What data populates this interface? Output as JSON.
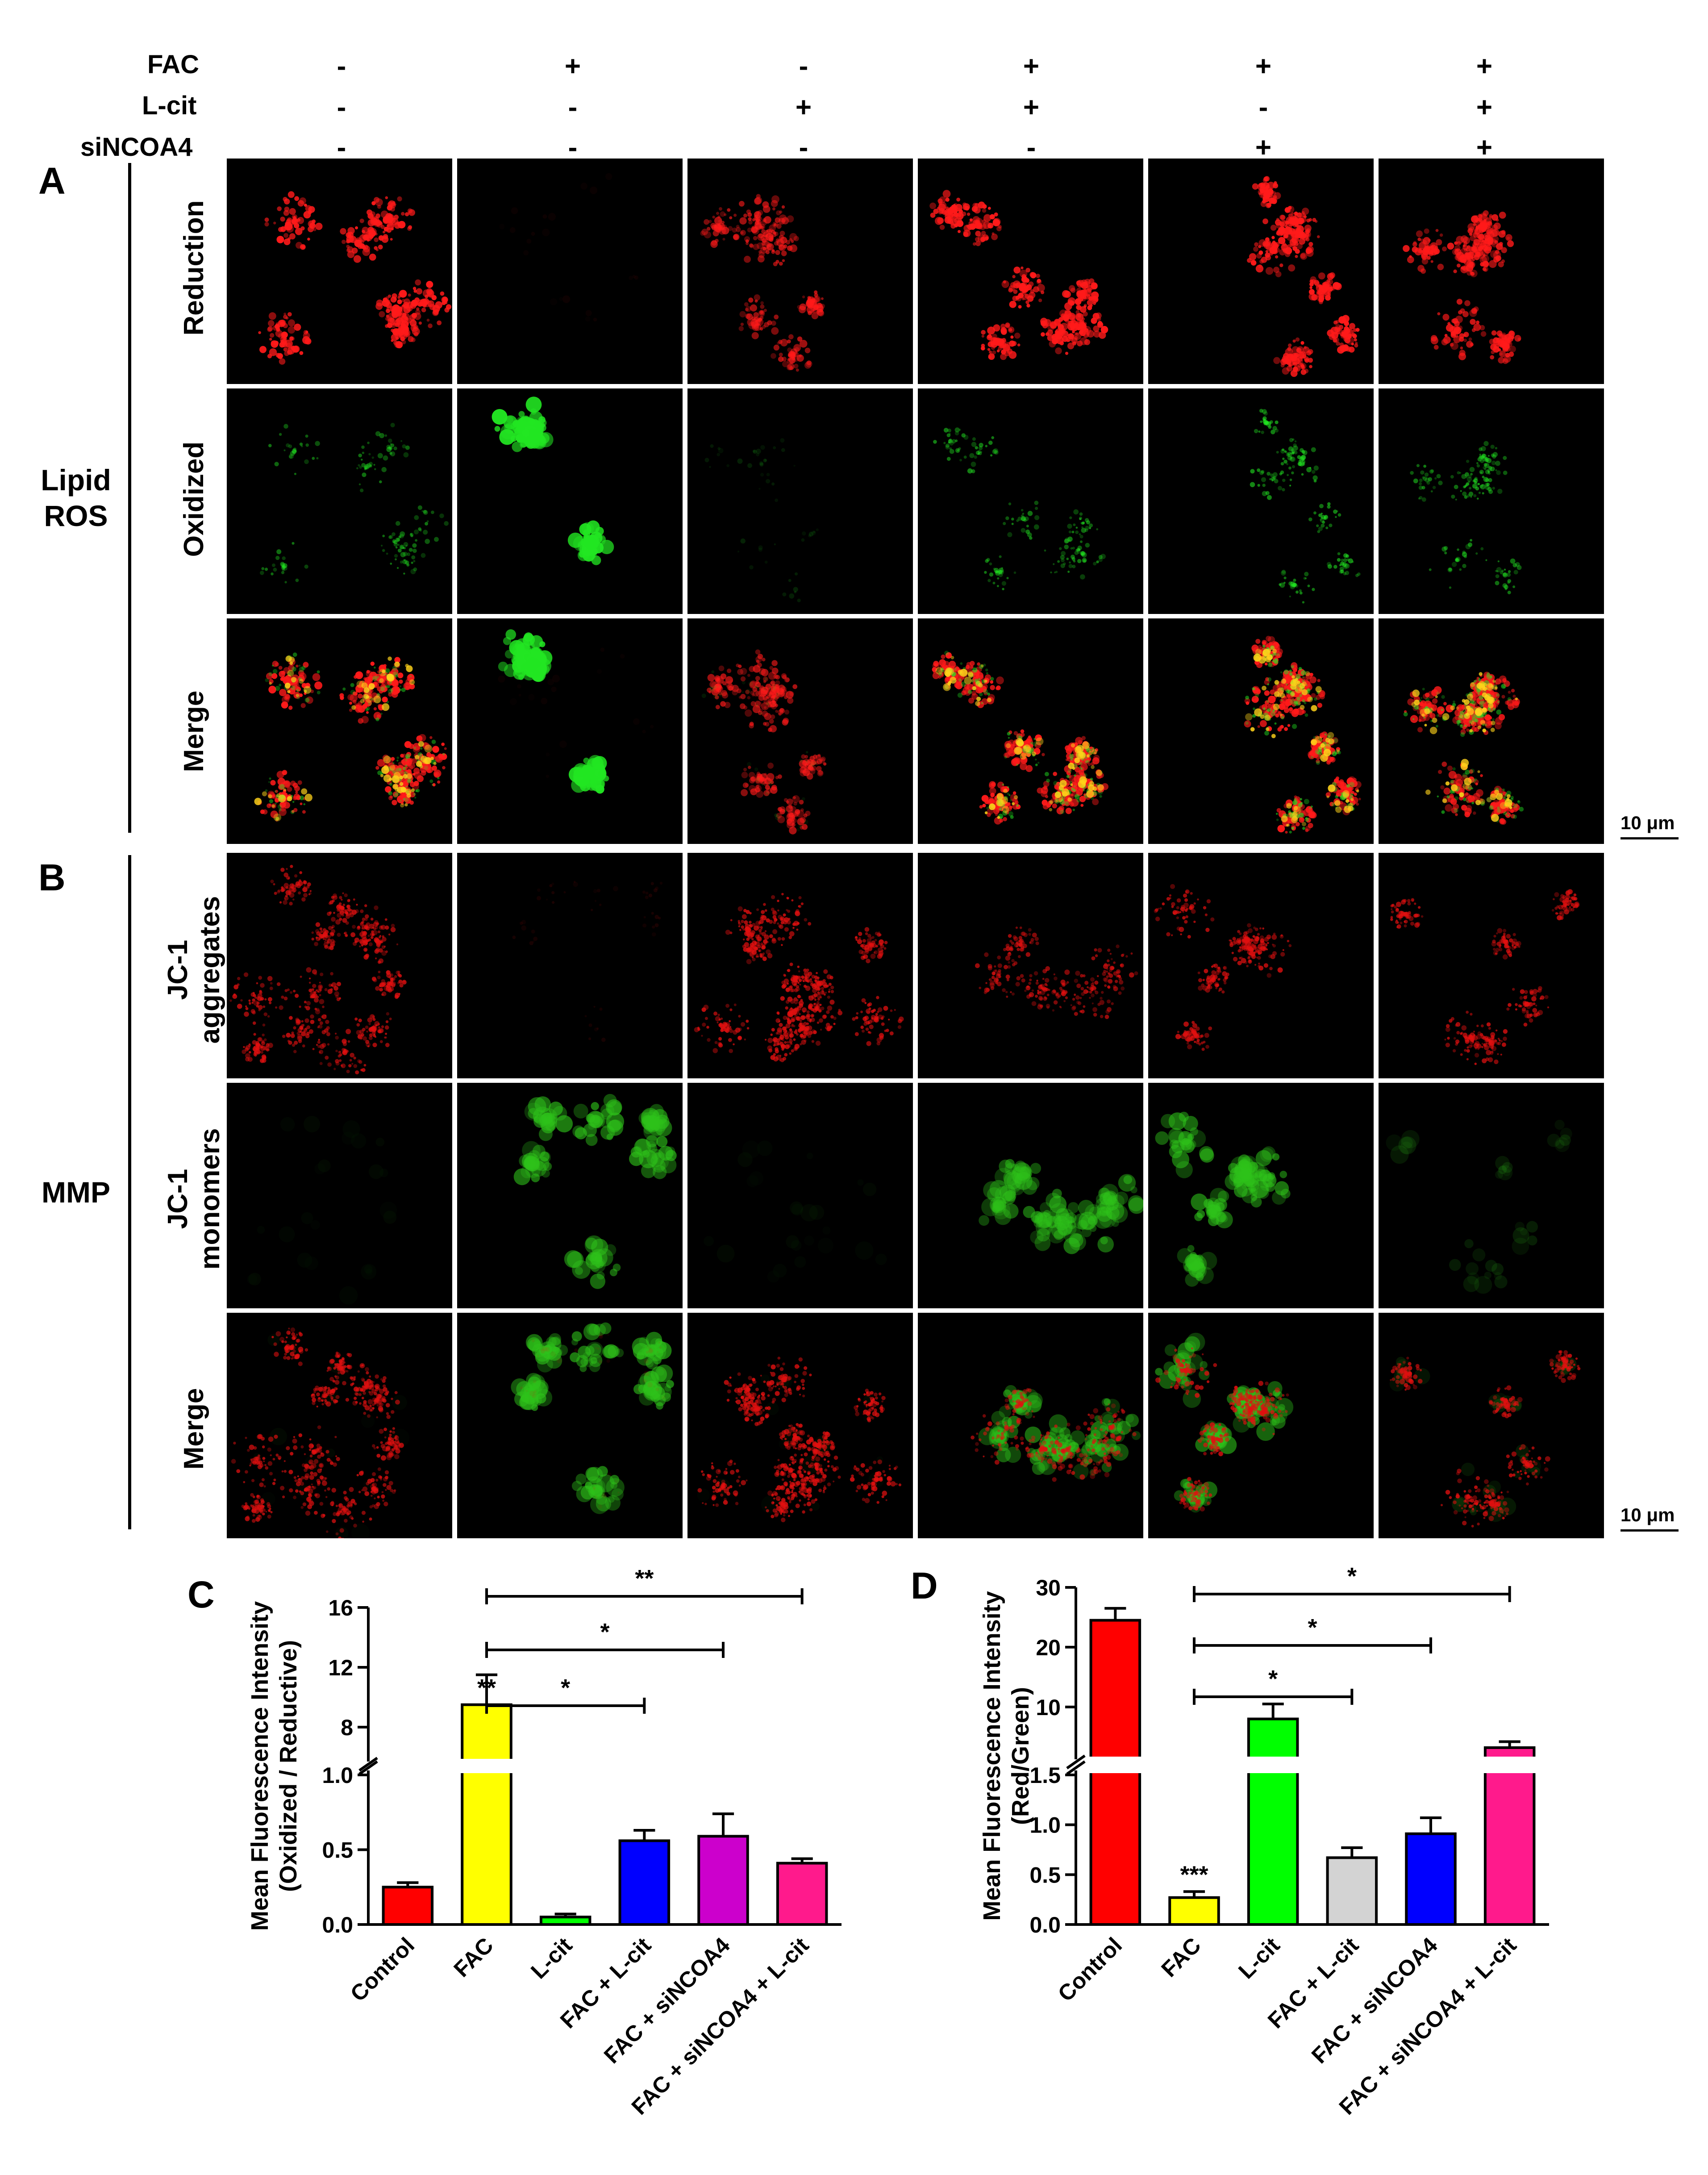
{
  "treatment_table": {
    "rows": [
      {
        "label": "FAC",
        "signs": [
          "-",
          "+",
          "-",
          "+",
          "+",
          "+"
        ]
      },
      {
        "label": "L-cit",
        "signs": [
          "-",
          "-",
          "+",
          "+",
          "-",
          "+"
        ]
      },
      {
        "label": "siNCOA4",
        "signs": [
          "-",
          "-",
          "-",
          "-",
          "+",
          "+"
        ]
      }
    ]
  },
  "panel_a": {
    "letter": "A",
    "section_label_line1": "Lipid",
    "section_label_line2": "ROS",
    "row_labels": [
      "Reduction",
      "Oxidized",
      "Merge"
    ],
    "scale_bar": "10 μm",
    "colors": {
      "reduced": "#ff1a1a",
      "oxidized": "#22e622",
      "merge": "#ffd21a"
    }
  },
  "panel_b": {
    "letter": "B",
    "section_label": "MMP",
    "row_labels": [
      [
        "JC-1",
        "aggregates"
      ],
      [
        "JC-1",
        "monomers"
      ],
      [
        "Merge"
      ]
    ],
    "scale_bar": "10 μm",
    "colors": {
      "aggregates": "#e01010",
      "monomers": "#2ec21a"
    }
  },
  "chart_data": [
    {
      "type": "bar",
      "panel": "C",
      "ylabel_line1": "Mean Fluorescence Intensity",
      "ylabel_line2": "(Oxidized / Reductive)",
      "categories": [
        "Control",
        "FAC",
        "L-cit",
        "FAC + L-cit",
        "FAC + siNCOA4",
        "FAC + siNCOA4 + L-cit"
      ],
      "values": [
        0.25,
        9.5,
        0.05,
        0.56,
        0.59,
        0.41
      ],
      "errors": [
        0.03,
        2.0,
        0.02,
        0.07,
        0.15,
        0.03
      ],
      "colors": [
        "#ff0000",
        "#ffff00",
        "#00ff00",
        "#0000ff",
        "#cc00cc",
        "#ff1a8c"
      ],
      "y_axis_break": {
        "lower_range": [
          0,
          1.0
        ],
        "upper_range": [
          6,
          16
        ]
      },
      "lower_ticks": [
        "0.0",
        "0.5",
        "1.0"
      ],
      "upper_ticks": [
        "8",
        "12",
        "16"
      ],
      "bar_annotations": [
        {
          "category": "FAC",
          "text": "**"
        }
      ],
      "comparisons": [
        {
          "from": "FAC",
          "to": "FAC + L-cit",
          "text": "*"
        },
        {
          "from": "FAC",
          "to": "FAC + siNCOA4",
          "text": "*"
        },
        {
          "from": "FAC",
          "to": "FAC + siNCOA4 + L-cit",
          "text": "**"
        }
      ]
    },
    {
      "type": "bar",
      "panel": "D",
      "ylabel_line1": "Mean Fluorescence Intensity",
      "ylabel_line2": "(Red/Green)",
      "categories": [
        "Control",
        "FAC",
        "L-cit",
        "FAC + L-cit",
        "FAC + siNCOA4",
        "FAC + siNCOA4 + L-cit"
      ],
      "values": [
        24.5,
        0.27,
        8.0,
        0.67,
        0.91,
        3.2
      ],
      "errors": [
        2.0,
        0.06,
        2.5,
        0.1,
        0.16,
        1.0
      ],
      "colors": [
        "#ff0000",
        "#ffff00",
        "#00ff00",
        "#d3d3d3",
        "#0000ff",
        "#ff1a8c"
      ],
      "y_axis_break": {
        "lower_range": [
          0,
          1.5
        ],
        "upper_range": [
          2,
          30
        ]
      },
      "lower_ticks": [
        "0.0",
        "0.5",
        "1.0",
        "1.5"
      ],
      "upper_ticks": [
        "10",
        "20",
        "30"
      ],
      "bar_annotations": [
        {
          "category": "FAC",
          "text": "***"
        }
      ],
      "comparisons": [
        {
          "from": "FAC",
          "to": "FAC + L-cit",
          "text": "*"
        },
        {
          "from": "FAC",
          "to": "FAC + siNCOA4",
          "text": "*"
        },
        {
          "from": "FAC",
          "to": "FAC + siNCOA4 + L-cit",
          "text": "*"
        }
      ]
    }
  ]
}
